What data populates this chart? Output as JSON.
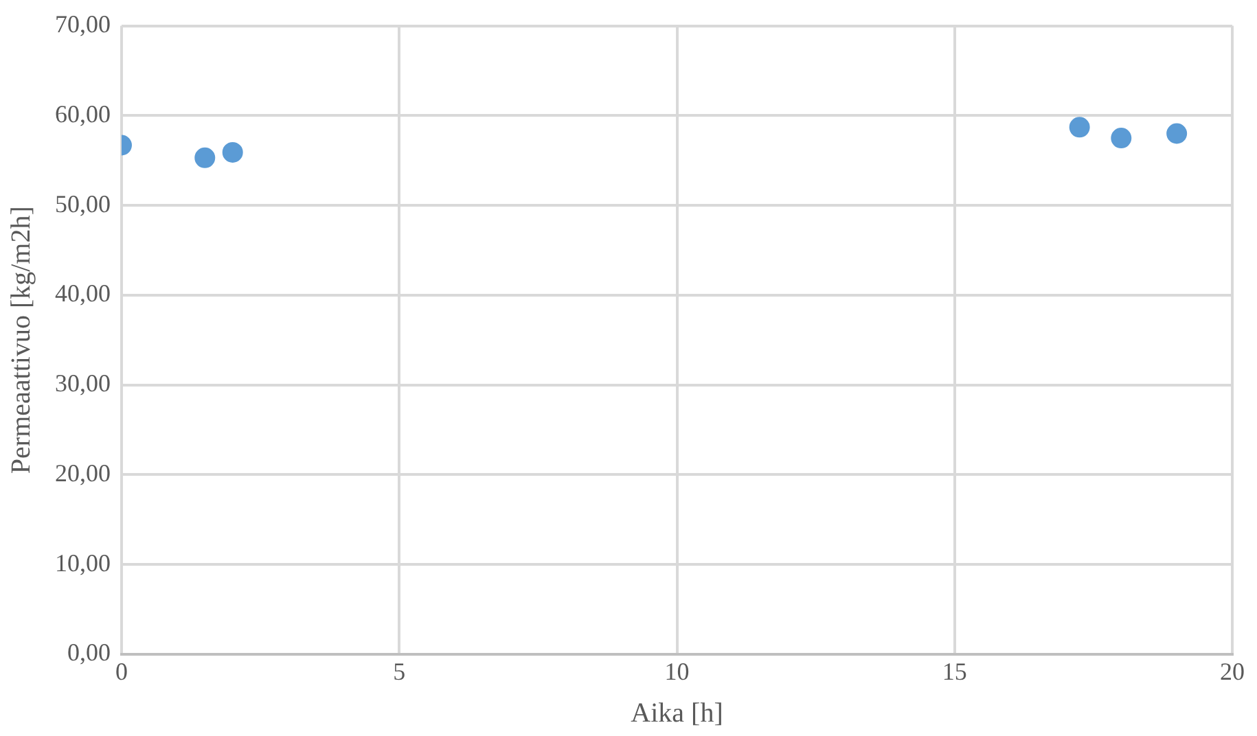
{
  "chart_data": {
    "type": "scatter",
    "xlabel": "Aika [h]",
    "ylabel": "Permeaattivuo [kg/m2h]",
    "x": [
      0,
      1.5,
      2,
      17.25,
      18,
      19
    ],
    "series": [
      {
        "color": "#5b9bd5",
        "values": [
          56.7,
          55.3,
          55.9,
          58.7,
          57.5,
          58.0
        ]
      }
    ],
    "xlim": [
      0,
      20
    ],
    "xticks": [
      0,
      5,
      10,
      15,
      20
    ],
    "ylim": [
      0,
      70
    ],
    "yticks": [
      {
        "value": 0,
        "label": "0,00"
      },
      {
        "value": 10,
        "label": "10,00"
      },
      {
        "value": 20,
        "label": "20,00"
      },
      {
        "value": 30,
        "label": "30,00"
      },
      {
        "value": 40,
        "label": "40,00"
      },
      {
        "value": 50,
        "label": "50,00"
      },
      {
        "value": 60,
        "label": "60,00"
      },
      {
        "value": 70,
        "label": "70,00"
      }
    ],
    "grid": true,
    "marker": "circle",
    "legend": false
  }
}
